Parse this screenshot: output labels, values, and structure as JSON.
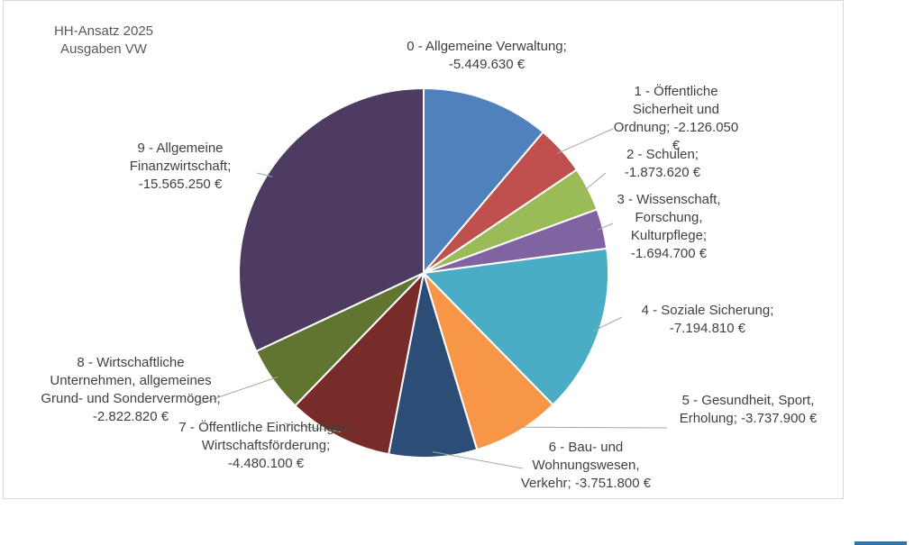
{
  "chart_data": {
    "type": "pie",
    "title": "HH-Ansatz 2025",
    "subtitle": "Ausgaben VW",
    "values": [
      -5449630,
      -2126050,
      -1873620,
      -1694700,
      -7194810,
      -3737900,
      -3751800,
      -4480100,
      -2822820,
      -15565250
    ],
    "value_labels": [
      "0 - Allgemeine Verwaltung; -5.449.630 €",
      "1 - Öffentliche Sicherheit und Ordnung; -2.126.050 €",
      "2 - Schulen; -1.873.620 €",
      "3 - Wissenschaft, Forschung, Kulturpflege; -1.694.700 €",
      "4 - Soziale Sicherung; -7.194.810 €",
      "5 - Gesundheit, Sport, Erholung; -3.737.900 €",
      "6 - Bau- und Wohnungswesen, Verkehr; -3.751.800 €",
      "7 - Öffentliche Einrichtungen, Wirtschaftsförderung; -4.480.100 €",
      "8 - Wirtschaftliche Unternehmen, allgemeines Grund- und Sondervermögen; -2.822.820 €",
      "9 - Allgemeine Finanzwirtschaft; -15.565.250 €"
    ],
    "colors": [
      "#4f81bd",
      "#c0504d",
      "#9bbb59",
      "#8064a2",
      "#4bacc6",
      "#f79646",
      "#2c4d75",
      "#772c2a",
      "#5f7530",
      "#4d3b62"
    ]
  }
}
